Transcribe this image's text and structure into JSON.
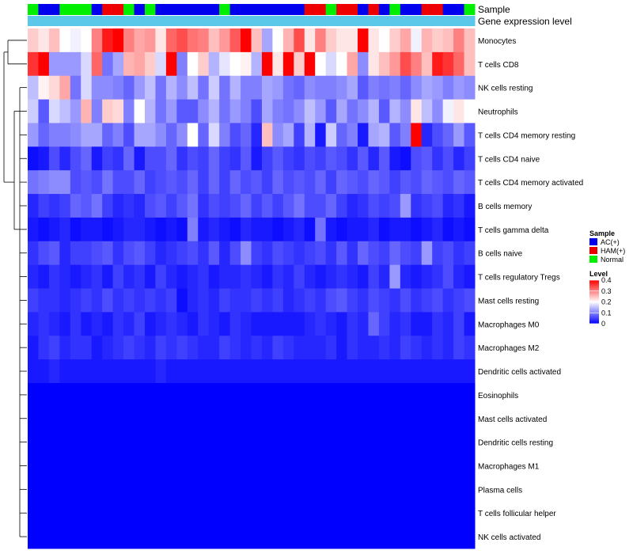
{
  "chart_data": {
    "type": "heatmap",
    "title": "",
    "annotation_tracks": [
      "Sample",
      "Gene expression level"
    ],
    "rows": [
      "Monocytes",
      "T cells CD8",
      "NK cells resting",
      "Neutrophils",
      "T cells CD4 memory resting",
      "T cells CD4 naive",
      "T cells CD4 memory activated",
      "B cells memory",
      "T cells gamma delta",
      "B cells naive",
      "T cells regulatory  Tregs",
      "Mast cells resting",
      "Macrophages M0",
      "Macrophages M2",
      "Dendritic cells activated",
      "Eosinophils",
      "Mast cells activated",
      "Dendritic cells resting",
      "Macrophages M1",
      "Plasma cells",
      "T cells follicular helper",
      "NK cells activated"
    ],
    "column_samples": [
      "Normal",
      "AC(+)",
      "AC(+)",
      "Normal",
      "Normal",
      "Normal",
      "AC(+)",
      "HAM(+)",
      "HAM(+)",
      "Normal",
      "AC(+)",
      "Normal",
      "AC(+)",
      "AC(+)",
      "AC(+)",
      "AC(+)",
      "AC(+)",
      "AC(+)",
      "Normal",
      "AC(+)",
      "AC(+)",
      "AC(+)",
      "AC(+)",
      "AC(+)",
      "AC(+)",
      "AC(+)",
      "HAM(+)",
      "HAM(+)",
      "Normal",
      "HAM(+)",
      "HAM(+)",
      "AC(+)",
      "HAM(+)",
      "AC(+)",
      "Normal",
      "AC(+)",
      "AC(+)",
      "HAM(+)",
      "HAM(+)",
      "AC(+)",
      "AC(+)",
      "Normal"
    ],
    "values": [
      [
        0.24,
        0.22,
        0.25,
        0.2,
        0.19,
        0.2,
        0.3,
        0.38,
        0.4,
        0.3,
        0.27,
        0.28,
        0.22,
        0.32,
        0.34,
        0.31,
        0.3,
        0.25,
        0.28,
        0.33,
        0.4,
        0.25,
        0.13,
        0.2,
        0.26,
        0.34,
        0.22,
        0.3,
        0.24,
        0.22,
        0.22,
        0.4,
        0.22,
        0.2,
        0.24,
        0.27,
        0.19,
        0.26,
        0.24,
        0.25,
        0.3,
        0.25
      ],
      [
        0.36,
        0.42,
        0.12,
        0.12,
        0.12,
        0.17,
        0.32,
        0.09,
        0.13,
        0.26,
        0.27,
        0.24,
        0.17,
        0.4,
        0.1,
        0.2,
        0.24,
        0.14,
        0.18,
        0.2,
        0.21,
        0.14,
        0.4,
        0.22,
        0.4,
        0.24,
        0.4,
        0.2,
        0.17,
        0.2,
        0.27,
        0.11,
        0.22,
        0.25,
        0.28,
        0.34,
        0.3,
        0.25,
        0.38,
        0.36,
        0.32,
        0.25
      ],
      [
        0.15,
        0.21,
        0.23,
        0.27,
        0.09,
        0.17,
        0.11,
        0.11,
        0.1,
        0.08,
        0.12,
        0.15,
        0.09,
        0.14,
        0.11,
        0.15,
        0.09,
        0.16,
        0.09,
        0.14,
        0.1,
        0.1,
        0.13,
        0.12,
        0.09,
        0.08,
        0.11,
        0.1,
        0.1,
        0.11,
        0.13,
        0.07,
        0.1,
        0.09,
        0.1,
        0.08,
        0.11,
        0.13,
        0.12,
        0.1,
        0.12,
        0.11
      ],
      [
        0.16,
        0.07,
        0.17,
        0.15,
        0.12,
        0.26,
        0.1,
        0.24,
        0.23,
        0.1,
        0.2,
        0.14,
        0.09,
        0.12,
        0.07,
        0.07,
        0.11,
        0.14,
        0.09,
        0.12,
        0.1,
        0.06,
        0.13,
        0.1,
        0.09,
        0.11,
        0.15,
        0.12,
        0.07,
        0.13,
        0.09,
        0.11,
        0.14,
        0.07,
        0.14,
        0.11,
        0.22,
        0.15,
        0.11,
        0.19,
        0.22,
        0.2
      ],
      [
        0.12,
        0.08,
        0.1,
        0.1,
        0.11,
        0.13,
        0.13,
        0.08,
        0.1,
        0.06,
        0.13,
        0.13,
        0.11,
        0.08,
        0.11,
        0.2,
        0.08,
        0.17,
        0.1,
        0.06,
        0.08,
        0.03,
        0.25,
        0.11,
        0.13,
        0.05,
        0.14,
        0.02,
        0.16,
        0.08,
        0.1,
        0.02,
        0.13,
        0.14,
        0.07,
        0.1,
        0.43,
        0.03,
        0.06,
        0.08,
        0.12,
        0.07
      ],
      [
        0.01,
        0.02,
        0.06,
        0.03,
        0.06,
        0.08,
        0.02,
        0.05,
        0.04,
        0.08,
        0.02,
        0.06,
        0.06,
        0.08,
        0.04,
        0.06,
        0.05,
        0.08,
        0.05,
        0.04,
        0.07,
        0.02,
        0.05,
        0.07,
        0.05,
        0.04,
        0.06,
        0.05,
        0.07,
        0.06,
        0.04,
        0.07,
        0.03,
        0.07,
        0.02,
        0.01,
        0.06,
        0.07,
        0.04,
        0.06,
        0.03,
        0.05
      ],
      [
        0.09,
        0.1,
        0.11,
        0.11,
        0.06,
        0.07,
        0.06,
        0.09,
        0.06,
        0.06,
        0.08,
        0.05,
        0.06,
        0.07,
        0.06,
        0.08,
        0.05,
        0.08,
        0.05,
        0.08,
        0.06,
        0.07,
        0.05,
        0.08,
        0.06,
        0.07,
        0.06,
        0.08,
        0.05,
        0.08,
        0.07,
        0.06,
        0.08,
        0.07,
        0.05,
        0.07,
        0.06,
        0.08,
        0.07,
        0.06,
        0.08,
        0.07
      ],
      [
        0.03,
        0.05,
        0.04,
        0.05,
        0.08,
        0.07,
        0.09,
        0.05,
        0.03,
        0.04,
        0.03,
        0.06,
        0.07,
        0.05,
        0.07,
        0.09,
        0.04,
        0.06,
        0.05,
        0.06,
        0.08,
        0.05,
        0.07,
        0.05,
        0.07,
        0.09,
        0.06,
        0.06,
        0.08,
        0.05,
        0.03,
        0.04,
        0.06,
        0.05,
        0.06,
        0.12,
        0.04,
        0.05,
        0.06,
        0.03,
        0.04,
        0.02
      ],
      [
        0.02,
        0.01,
        0.02,
        0.03,
        0.01,
        0.02,
        0.02,
        0.01,
        0.02,
        0.03,
        0.03,
        0.02,
        0.01,
        0.02,
        0.01,
        0.1,
        0.02,
        0.03,
        0.02,
        0.01,
        0.03,
        0.02,
        0.02,
        0.01,
        0.02,
        0.03,
        0.01,
        0.09,
        0.02,
        0.01,
        0.02,
        0.02,
        0.03,
        0.01,
        0.02,
        0.02,
        0.01,
        0.02,
        0.03,
        0.01,
        0.02,
        0.01
      ],
      [
        0.04,
        0.06,
        0.07,
        0.03,
        0.05,
        0.05,
        0.06,
        0.07,
        0.04,
        0.06,
        0.07,
        0.05,
        0.03,
        0.04,
        0.05,
        0.06,
        0.04,
        0.07,
        0.03,
        0.06,
        0.11,
        0.05,
        0.04,
        0.06,
        0.05,
        0.04,
        0.05,
        0.06,
        0.04,
        0.07,
        0.04,
        0.08,
        0.06,
        0.05,
        0.08,
        0.06,
        0.05,
        0.12,
        0.05,
        0.06,
        0.04,
        0.05
      ],
      [
        0.03,
        0.02,
        0.04,
        0.03,
        0.02,
        0.03,
        0.04,
        0.02,
        0.05,
        0.03,
        0.04,
        0.02,
        0.05,
        0.03,
        0.02,
        0.03,
        0.04,
        0.02,
        0.03,
        0.03,
        0.04,
        0.03,
        0.02,
        0.04,
        0.03,
        0.05,
        0.03,
        0.02,
        0.03,
        0.04,
        0.03,
        0.02,
        0.05,
        0.03,
        0.12,
        0.03,
        0.02,
        0.03,
        0.04,
        0.06,
        0.03,
        0.02
      ],
      [
        0.05,
        0.04,
        0.04,
        0.03,
        0.04,
        0.05,
        0.04,
        0.06,
        0.04,
        0.05,
        0.04,
        0.05,
        0.04,
        0.05,
        0.01,
        0.03,
        0.04,
        0.03,
        0.05,
        0.04,
        0.04,
        0.05,
        0.04,
        0.05,
        0.03,
        0.04,
        0.05,
        0.04,
        0.06,
        0.07,
        0.05,
        0.04,
        0.06,
        0.05,
        0.04,
        0.06,
        0.04,
        0.05,
        0.06,
        0.04,
        0.05,
        0.06
      ],
      [
        0.03,
        0.04,
        0.03,
        0.02,
        0.04,
        0.02,
        0.03,
        0.02,
        0.04,
        0.03,
        0.05,
        0.02,
        0.03,
        0.04,
        0.03,
        0.02,
        0.04,
        0.03,
        0.02,
        0.04,
        0.03,
        0.02,
        0.02,
        0.02,
        0.02,
        0.02,
        0.03,
        0.04,
        0.03,
        0.02,
        0.04,
        0.03,
        0.08,
        0.05,
        0.03,
        0.04,
        0.02,
        0.02,
        0.04,
        0.03,
        0.05,
        0.02
      ],
      [
        0.02,
        0.04,
        0.05,
        0.03,
        0.04,
        0.04,
        0.02,
        0.03,
        0.04,
        0.05,
        0.04,
        0.03,
        0.05,
        0.04,
        0.05,
        0.04,
        0.03,
        0.03,
        0.05,
        0.04,
        0.03,
        0.04,
        0.03,
        0.05,
        0.04,
        0.03,
        0.03,
        0.03,
        0.04,
        0.02,
        0.04,
        0.03,
        0.03,
        0.04,
        0.03,
        0.05,
        0.04,
        0.03,
        0.04,
        0.03,
        0.05,
        0.04
      ],
      [
        0.02,
        0.02,
        0.03,
        0.02,
        0.02,
        0.02,
        0.02,
        0.02,
        0.02,
        0.02,
        0.02,
        0.02,
        0.03,
        0.02,
        0.02,
        0.02,
        0.02,
        0.02,
        0.02,
        0.02,
        0.02,
        0.02,
        0.02,
        0.02,
        0.02,
        0.02,
        0.02,
        0.02,
        0.02,
        0.02,
        0.02,
        0.02,
        0.02,
        0.02,
        0.02,
        0.02,
        0.02,
        0.02,
        0.02,
        0.02,
        0.02,
        0.02
      ],
      [
        0,
        0,
        0,
        0,
        0,
        0,
        0,
        0,
        0,
        0,
        0,
        0,
        0,
        0,
        0,
        0,
        0,
        0,
        0,
        0,
        0,
        0,
        0,
        0,
        0,
        0,
        0,
        0,
        0,
        0,
        0,
        0,
        0,
        0,
        0,
        0,
        0,
        0,
        0,
        0,
        0,
        0
      ],
      [
        0,
        0,
        0,
        0,
        0,
        0,
        0,
        0,
        0,
        0,
        0,
        0,
        0,
        0,
        0,
        0,
        0,
        0,
        0,
        0,
        0,
        0,
        0,
        0,
        0,
        0,
        0,
        0,
        0,
        0,
        0,
        0,
        0,
        0,
        0,
        0,
        0,
        0,
        0,
        0,
        0,
        0
      ],
      [
        0,
        0,
        0,
        0,
        0,
        0,
        0,
        0,
        0,
        0,
        0,
        0,
        0,
        0,
        0,
        0,
        0,
        0,
        0,
        0,
        0,
        0,
        0,
        0,
        0,
        0,
        0,
        0,
        0,
        0,
        0,
        0,
        0,
        0,
        0,
        0,
        0,
        0,
        0,
        0,
        0,
        0
      ],
      [
        0,
        0,
        0,
        0,
        0,
        0,
        0,
        0,
        0,
        0,
        0,
        0,
        0,
        0,
        0,
        0,
        0,
        0,
        0,
        0,
        0,
        0,
        0,
        0,
        0,
        0,
        0,
        0,
        0,
        0,
        0,
        0,
        0,
        0,
        0,
        0,
        0,
        0,
        0,
        0,
        0,
        0
      ],
      [
        0,
        0,
        0,
        0,
        0,
        0,
        0,
        0,
        0,
        0,
        0,
        0,
        0,
        0,
        0,
        0,
        0,
        0,
        0,
        0,
        0,
        0,
        0,
        0,
        0,
        0,
        0,
        0,
        0,
        0,
        0,
        0,
        0,
        0,
        0,
        0,
        0,
        0,
        0,
        0,
        0,
        0
      ],
      [
        0,
        0,
        0,
        0,
        0,
        0,
        0,
        0,
        0,
        0,
        0,
        0,
        0,
        0,
        0,
        0,
        0,
        0,
        0,
        0,
        0,
        0,
        0,
        0,
        0,
        0,
        0,
        0,
        0,
        0,
        0,
        0,
        0,
        0,
        0,
        0,
        0,
        0,
        0,
        0,
        0,
        0
      ],
      [
        0,
        0,
        0,
        0,
        0,
        0,
        0,
        0,
        0,
        0,
        0,
        0,
        0,
        0,
        0,
        0,
        0,
        0,
        0,
        0,
        0,
        0,
        0,
        0,
        0,
        0,
        0,
        0,
        0,
        0,
        0,
        0,
        0,
        0,
        0,
        0,
        0,
        0,
        0,
        0,
        0,
        0
      ]
    ],
    "legend": {
      "sample_title": "Sample",
      "sample_groups": [
        {
          "label": "AC(+)",
          "color": "#0000ee"
        },
        {
          "label": "HAM(+)",
          "color": "#ee0000"
        },
        {
          "label": "Normal",
          "color": "#00ee00"
        }
      ],
      "level_title": "Level",
      "level_ticks": [
        "0.4",
        "0.3",
        "0.2",
        "0.1",
        "0"
      ],
      "level_range": [
        0,
        0.4
      ]
    },
    "color_scale": {
      "low": "#0000ff",
      "mid": "#ffffff",
      "high": "#ff0000",
      "mid_value": 0.2
    },
    "expression_track_color": "#5bc8ea"
  }
}
